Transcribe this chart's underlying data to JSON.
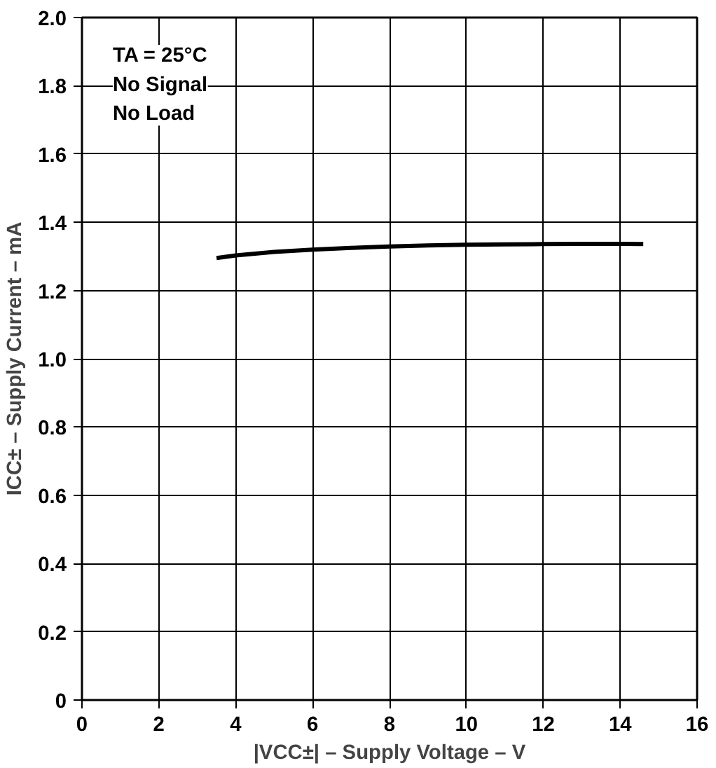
{
  "chart_data": {
    "type": "line",
    "xlabel": "|VCC±| – Supply Voltage – V",
    "ylabel": "ICC± – Supply Current – mA",
    "annotations": [
      "TA = 25°C",
      "No Signal",
      "No Load"
    ],
    "x": [
      3.5,
      4,
      5,
      6,
      7,
      8,
      9,
      10,
      11,
      12,
      13,
      14,
      14.6
    ],
    "series": [
      {
        "color": "#000000",
        "values": [
          1.295,
          1.303,
          1.313,
          1.32,
          1.325,
          1.329,
          1.332,
          1.334,
          1.335,
          1.336,
          1.337,
          1.337,
          1.336
        ]
      }
    ],
    "xlim": [
      0,
      16
    ],
    "ylim": [
      0,
      2.0
    ],
    "xticks": [
      0,
      2,
      4,
      6,
      8,
      10,
      12,
      14,
      16
    ],
    "yticks": [
      {
        "value": 0,
        "label": "0"
      },
      {
        "value": 0.2,
        "label": "0.2"
      },
      {
        "value": 0.4,
        "label": "0.4"
      },
      {
        "value": 0.6,
        "label": "0.6"
      },
      {
        "value": 0.8,
        "label": "0.8"
      },
      {
        "value": 1.0,
        "label": "1.0"
      },
      {
        "value": 1.2,
        "label": "1.2"
      },
      {
        "value": 1.4,
        "label": "1.4"
      },
      {
        "value": 1.6,
        "label": "1.6"
      },
      {
        "value": 1.8,
        "label": "1.8"
      },
      {
        "value": 2.0,
        "label": "2.0"
      }
    ],
    "grid": true
  }
}
